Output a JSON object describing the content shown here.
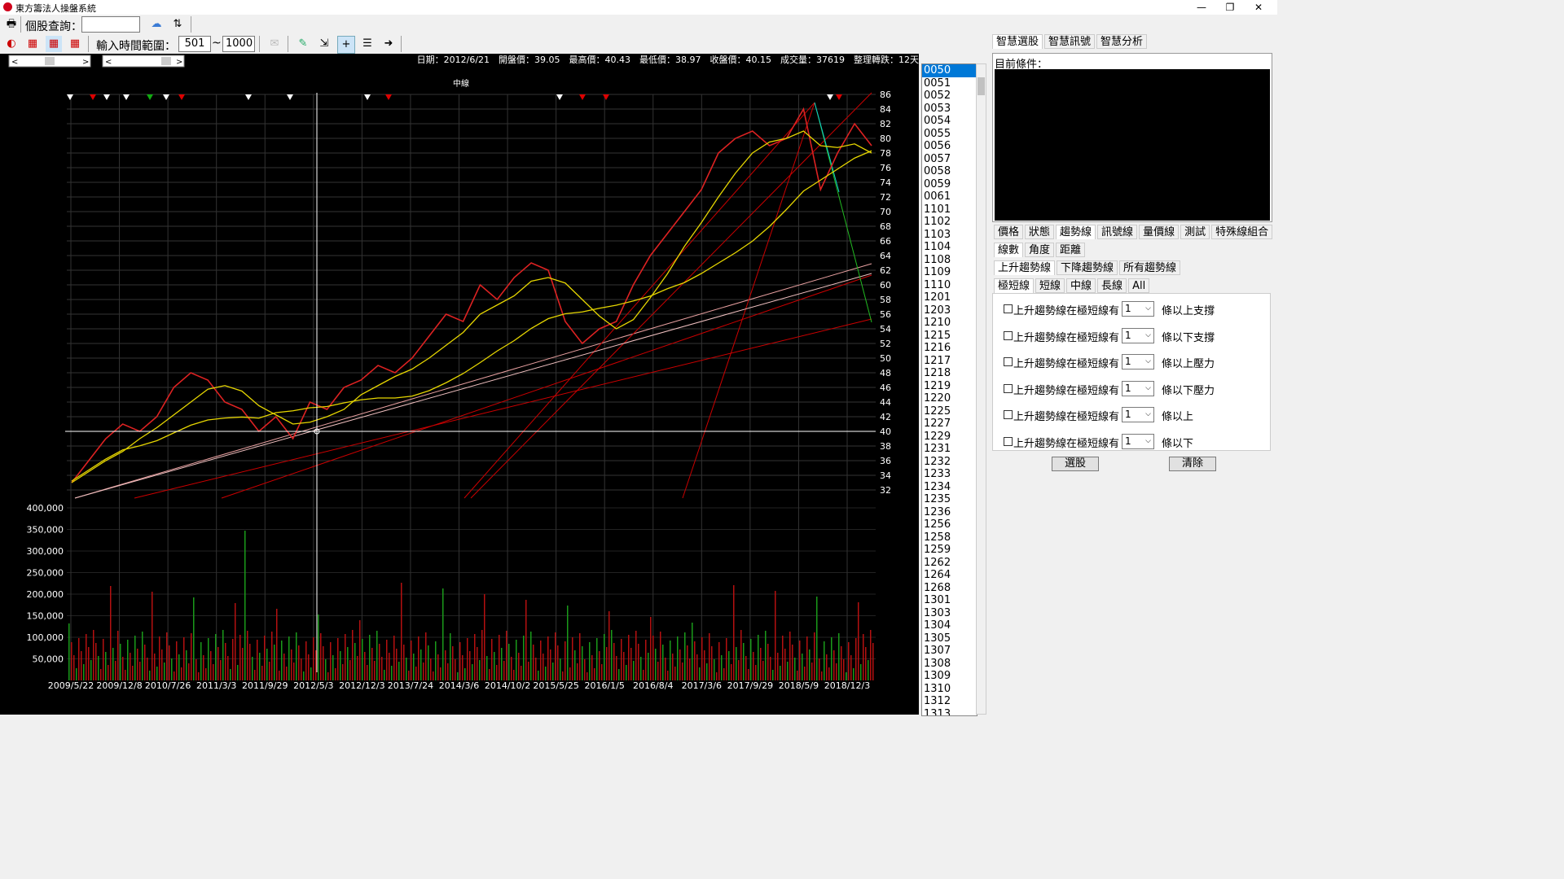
{
  "window": {
    "title": "東方籌法人操盤系統",
    "minimize": "—",
    "restore": "❐",
    "close": "✕"
  },
  "toolbar": {
    "stock_query_label": "個股查詢：",
    "stock_query_value": "",
    "time_range_label": "輸入時間範圍：",
    "range_from": "501",
    "range_sep": "~",
    "range_to": "1000"
  },
  "info_bar": {
    "date": "日期：2012/6/21",
    "open": "開盤價：39.05",
    "high": "最高價：40.43",
    "low": "最低價：38.97",
    "close": "收盤價：40.15",
    "volume": "成交量：37619",
    "consolidation": "整理轉跌：12天"
  },
  "chart_data": {
    "type": "line",
    "title": "中線",
    "x_ticks": [
      "2009/5/22",
      "2009/12/8",
      "2010/7/26",
      "2011/3/3",
      "2011/9/29",
      "2012/5/3",
      "2012/12/3",
      "2013/7/24",
      "2014/3/6",
      "2014/10/2",
      "2015/5/25",
      "2016/1/5",
      "2016/8/4",
      "2017/3/6",
      "2017/9/29",
      "2018/5/9",
      "2018/12/3"
    ],
    "price_ticks": [
      86,
      84,
      82,
      80,
      78,
      76,
      74,
      72,
      70,
      68,
      66,
      64,
      62,
      60,
      58,
      56,
      54,
      52,
      50,
      48,
      46,
      44,
      42,
      40,
      38,
      36,
      34,
      32
    ],
    "price_ylim": [
      32,
      86
    ],
    "volume_ticks": [
      "400,000",
      "350,000",
      "300,000",
      "250,000",
      "200,000",
      "150,000",
      "100,000",
      "50,000"
    ],
    "volume_ylim": [
      0,
      400000
    ],
    "crosshair_price": 40,
    "series": [
      {
        "values": [
          33,
          36,
          39,
          41,
          40,
          42,
          46,
          48,
          47,
          44,
          43,
          40,
          42,
          39,
          44,
          43,
          46,
          47,
          49,
          48,
          50,
          53,
          56,
          55,
          60,
          58,
          61,
          63,
          62,
          55,
          52,
          54,
          55,
          60,
          64,
          67,
          70,
          73,
          78,
          80,
          81,
          79,
          80,
          84,
          73,
          78,
          82,
          79
        ]
      }
    ],
    "grid": true
  },
  "symbols": [
    "0050",
    "0051",
    "0052",
    "0053",
    "0054",
    "0055",
    "0056",
    "0057",
    "0058",
    "0059",
    "0061",
    "1101",
    "1102",
    "1103",
    "1104",
    "1108",
    "1109",
    "1110",
    "1201",
    "1203",
    "1210",
    "1215",
    "1216",
    "1217",
    "1218",
    "1219",
    "1220",
    "1225",
    "1227",
    "1229",
    "1231",
    "1232",
    "1233",
    "1234",
    "1235",
    "1236",
    "1256",
    "1258",
    "1259",
    "1262",
    "1264",
    "1268",
    "1301",
    "1303",
    "1304",
    "1305",
    "1307",
    "1308",
    "1309",
    "1310",
    "1312",
    "1313"
  ],
  "right_panel": {
    "top_tabs": [
      "智慧選股",
      "智慧訊號",
      "智慧分析"
    ],
    "condition_label": "目前條件：",
    "tabs_row1": [
      "價格",
      "狀態",
      "趨勢線",
      "訊號線",
      "量價線",
      "測試",
      "特殊線組合"
    ],
    "tabs_row2": [
      "線數",
      "角度",
      "距離"
    ],
    "tabs_row3": [
      "上升趨勢線",
      "下降趨勢線",
      "所有趨勢線"
    ],
    "tabs_row4": [
      "極短線",
      "短線",
      "中線",
      "長線",
      "All"
    ],
    "conditions": [
      {
        "label": "上升趨勢線在極短線有",
        "value": "1",
        "suffix": "條以上支撐"
      },
      {
        "label": "上升趨勢線在極短線有",
        "value": "1",
        "suffix": "條以下支撐"
      },
      {
        "label": "上升趨勢線在極短線有",
        "value": "1",
        "suffix": "條以上壓力"
      },
      {
        "label": "上升趨勢線在極短線有",
        "value": "1",
        "suffix": "條以下壓力"
      },
      {
        "label": "上升趨勢線在極短線有",
        "value": "1",
        "suffix": "條以上"
      },
      {
        "label": "上升趨勢線在極短線有",
        "value": "1",
        "suffix": "條以下"
      }
    ],
    "select_button": "選股",
    "clear_button": "清除"
  }
}
